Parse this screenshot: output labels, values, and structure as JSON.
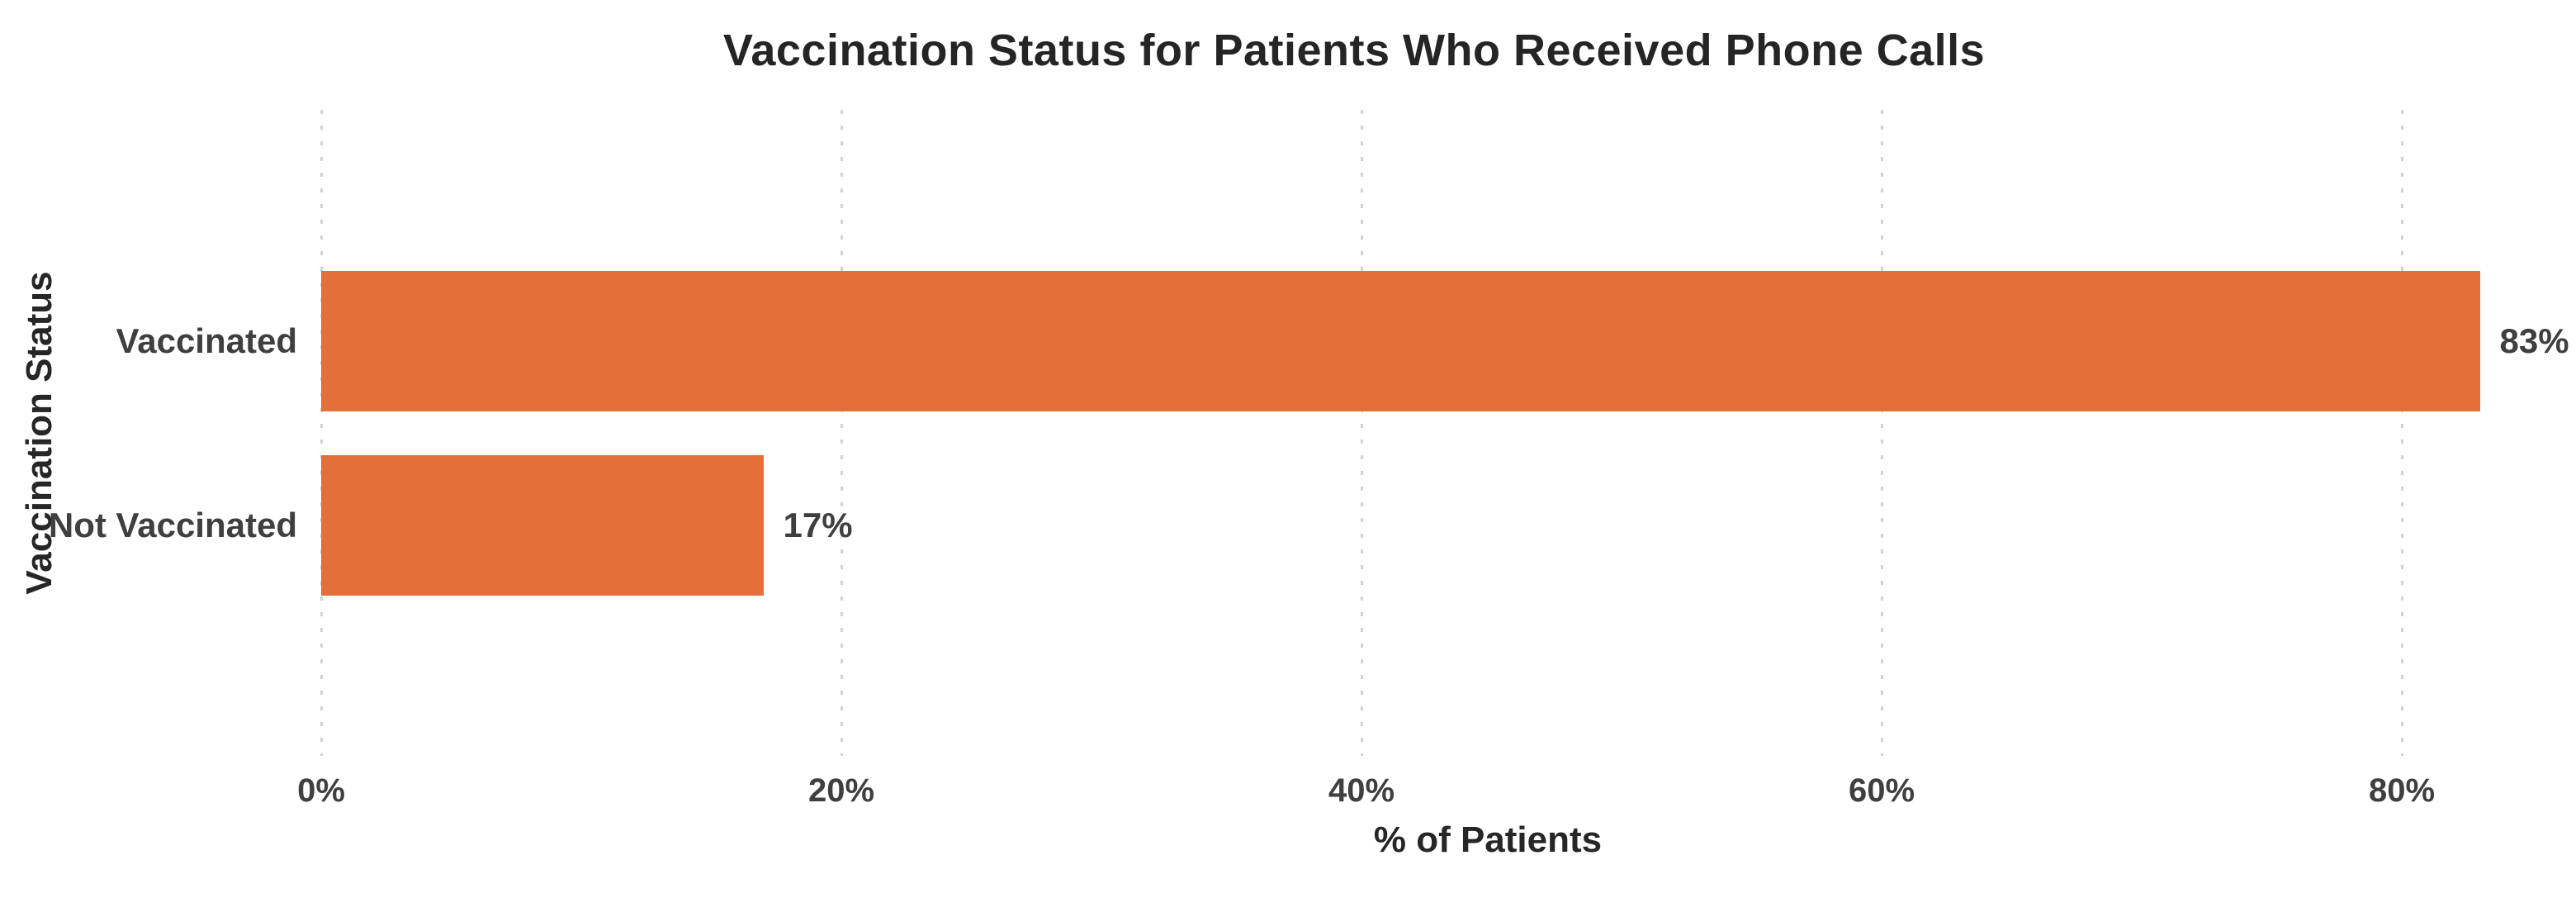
{
  "chart_data": {
    "type": "bar",
    "orientation": "horizontal",
    "title": "Vaccination Status for Patients Who Received Phone Calls",
    "xlabel": "% of Patients",
    "ylabel": "Vaccination Status",
    "categories": [
      "Vaccinated",
      "Not Vaccinated"
    ],
    "values": [
      83,
      17
    ],
    "value_labels": [
      "83%",
      "17%"
    ],
    "x_ticks": [
      {
        "value": 0,
        "label": "0%"
      },
      {
        "value": 20,
        "label": "20%"
      },
      {
        "value": 40,
        "label": "40%"
      },
      {
        "value": 60,
        "label": "60%"
      },
      {
        "value": 80,
        "label": "80%"
      }
    ],
    "xlim": [
      0,
      88
    ],
    "grid": "vertical-dotted",
    "legend": "none",
    "colors": {
      "bar": "#e56f38",
      "title_text": "#252525",
      "label_text": "#3f3f3f",
      "gridline": "#d2d2d2",
      "background": "#ffffff"
    }
  }
}
